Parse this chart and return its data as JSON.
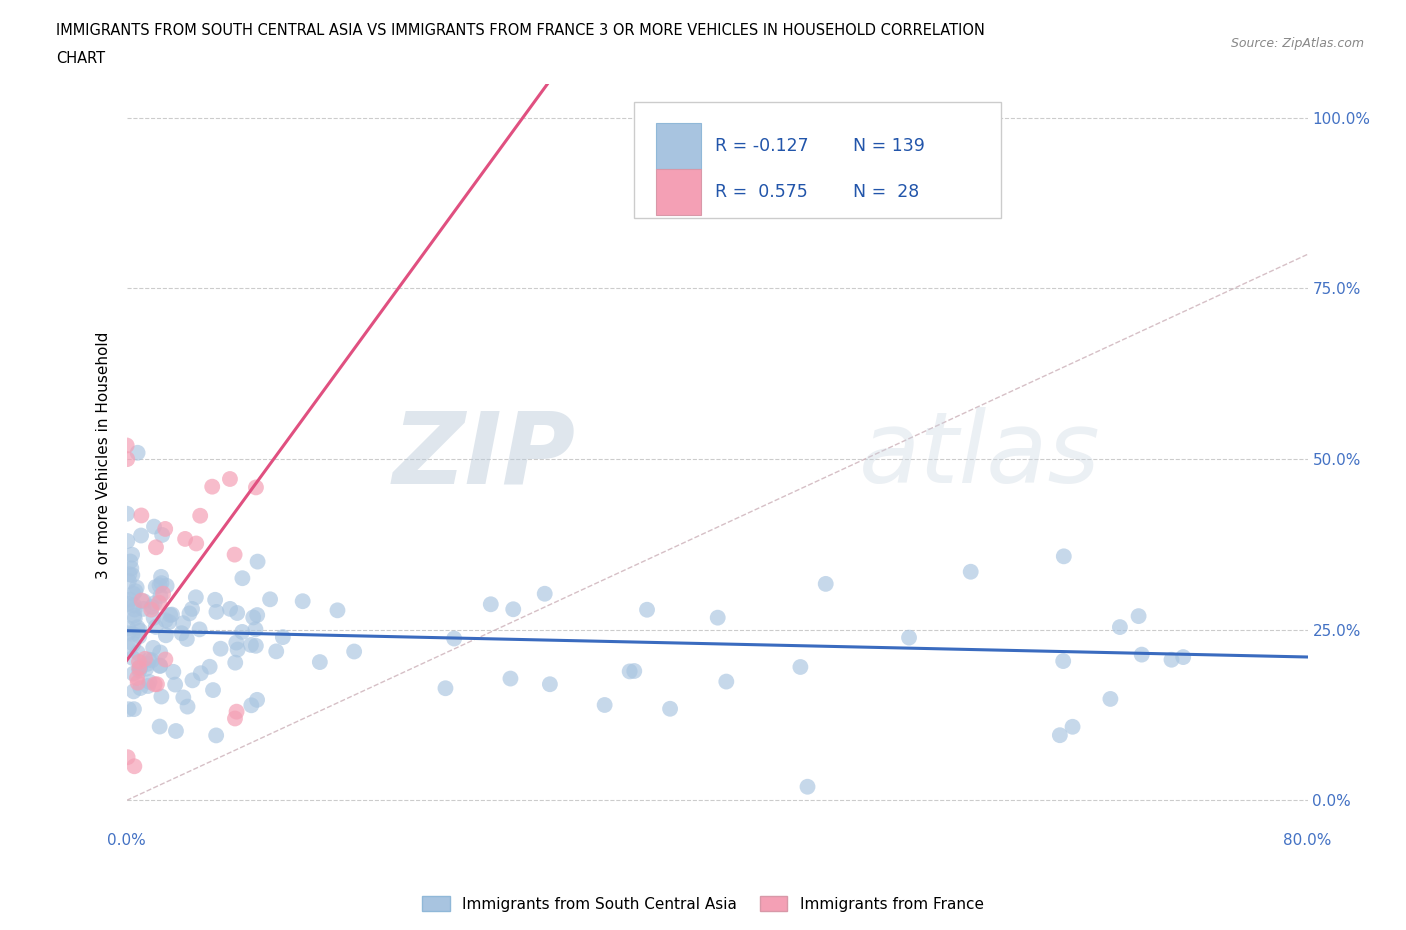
{
  "title_line1": "IMMIGRANTS FROM SOUTH CENTRAL ASIA VS IMMIGRANTS FROM FRANCE 3 OR MORE VEHICLES IN HOUSEHOLD CORRELATION",
  "title_line2": "CHART",
  "source_text": "Source: ZipAtlas.com",
  "ylabel": "3 or more Vehicles in Household",
  "xlim": [
    0.0,
    0.8
  ],
  "ylim": [
    0.0,
    1.0
  ],
  "R_blue": -0.127,
  "N_blue": 139,
  "R_pink": 0.575,
  "N_pink": 28,
  "blue_color": "#a8c4e0",
  "pink_color": "#f4a0b5",
  "blue_line_color": "#3a6bbf",
  "pink_line_color": "#e05080",
  "diagonal_color": "#d4b0b8",
  "legend_blue_label": "Immigrants from South Central Asia",
  "legend_pink_label": "Immigrants from France",
  "seed_blue": 42,
  "seed_pink": 99
}
